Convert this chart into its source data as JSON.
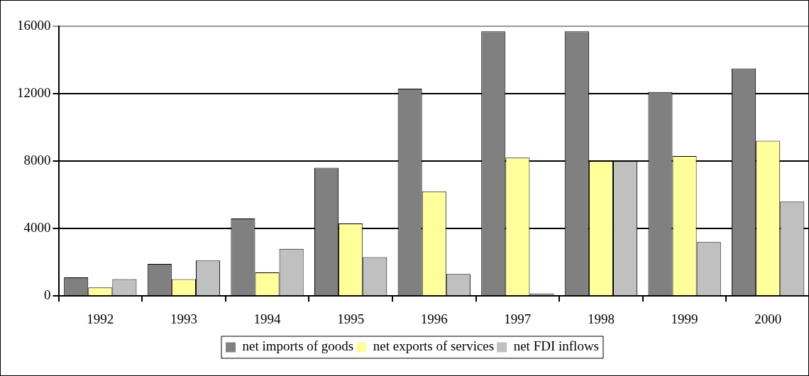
{
  "chart_data": {
    "type": "bar",
    "categories": [
      "1992",
      "1993",
      "1994",
      "1995",
      "1996",
      "1997",
      "1998",
      "1999",
      "2000"
    ],
    "series": [
      {
        "name": "net imports of goods",
        "color": "#808080",
        "values": [
          1100,
          1900,
          4600,
          7600,
          12300,
          15700,
          15700,
          12100,
          13500
        ]
      },
      {
        "name": "net exports of services",
        "color": "#ffff99",
        "values": [
          500,
          1000,
          1400,
          4300,
          6200,
          8200,
          8000,
          8300,
          9200
        ]
      },
      {
        "name": "net FDI inflows",
        "color": "#c0c0c0",
        "values": [
          1000,
          2100,
          2800,
          2300,
          1300,
          150,
          8000,
          3200,
          5600
        ]
      }
    ],
    "ylim": [
      0,
      16000
    ],
    "yticks": [
      0,
      4000,
      8000,
      12000,
      16000
    ],
    "grid": "y",
    "legend": "bottom"
  }
}
